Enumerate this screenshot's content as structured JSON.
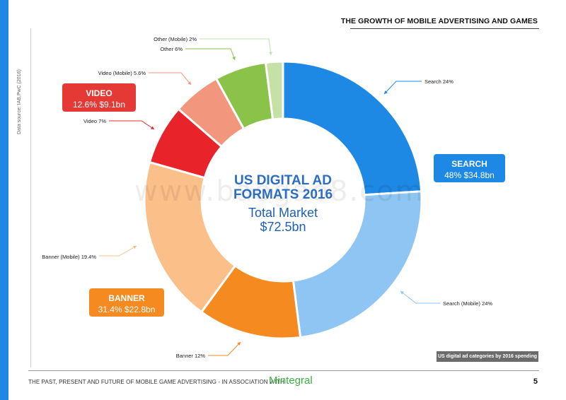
{
  "header": {
    "title": "THE GROWTH OF MOBILE ADVERTISING AND GAMES"
  },
  "source": "Data source: IAB,PwC (2016)",
  "watermark": "www.baogao8.com",
  "center": {
    "title_line1": "US DIGITAL AD",
    "title_line2": "FORMATS 2016",
    "sub_line1": "Total Market",
    "sub_line2": "$72.5bn"
  },
  "categories": {
    "video": {
      "name": "VIDEO",
      "value": "12.6% $9.1bn",
      "color": "#e53935"
    },
    "search": {
      "name": "SEARCH",
      "value": "48% $34.8bn",
      "color": "#1e88e5"
    },
    "banner": {
      "name": "BANNER",
      "value": "31.4% $22.8bn",
      "color": "#f48a20"
    }
  },
  "legend_note": "US digital ad categories by 2016 spending",
  "footer": {
    "text": "THE PAST, PRESENT AND FUTURE OF MOBILE GAME ADVERTISING - IN ASSOCIATION WITH",
    "logo": "Mintegral",
    "page": "5"
  },
  "chart_data": {
    "type": "pie",
    "donut": true,
    "title": "US DIGITAL AD FORMATS 2016",
    "total_label": "Total Market $72.5bn",
    "slices": [
      {
        "label": "Search 24%",
        "value": 24,
        "color": "#1e88e5"
      },
      {
        "label": "Search (Mobile) 24%",
        "value": 24,
        "color": "#8ec5f2"
      },
      {
        "label": "Banner 12%",
        "value": 12,
        "color": "#f48a20"
      },
      {
        "label": "Banner (Mobile) 19.4%",
        "value": 19.4,
        "color": "#fbbf8a"
      },
      {
        "label": "Video 7%",
        "value": 7,
        "color": "#e8242a"
      },
      {
        "label": "Video (Mobile) 5.6%",
        "value": 5.6,
        "color": "#f3967e"
      },
      {
        "label": "Other 6%",
        "value": 6,
        "color": "#8bc34a"
      },
      {
        "label": "Other (Mobile) 2%",
        "value": 2,
        "color": "#c5e1a5"
      }
    ]
  }
}
